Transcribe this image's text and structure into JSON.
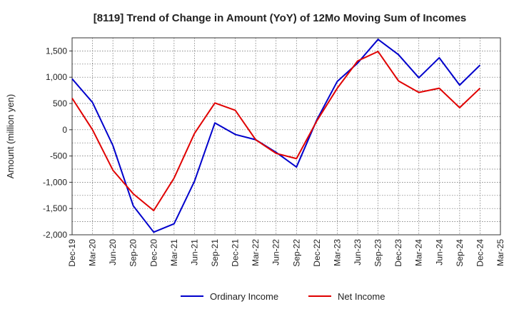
{
  "chart_data": {
    "type": "line",
    "title": "[8119]  Trend of Change in Amount (YoY) of 12Mo Moving Sum of Incomes",
    "xlabel": "",
    "ylabel": "Amount (million yen)",
    "ylim": [
      -2000,
      1750
    ],
    "yticks": [
      -2000,
      -1500,
      -1000,
      -500,
      0,
      500,
      1000,
      1500
    ],
    "ytick_labels": [
      "-2,000",
      "-1,500",
      "-1,000",
      "-500",
      "0",
      "500",
      "1,000",
      "1,500"
    ],
    "categories": [
      "Dec-19",
      "Mar-20",
      "Jun-20",
      "Sep-20",
      "Dec-20",
      "Mar-21",
      "Jun-21",
      "Sep-21",
      "Dec-21",
      "Mar-22",
      "Jun-22",
      "Sep-22",
      "Dec-22",
      "Mar-23",
      "Jun-23",
      "Sep-23",
      "Dec-23",
      "Mar-24",
      "Jun-24",
      "Sep-24",
      "Dec-24",
      "Mar-25"
    ],
    "grid": true,
    "legend_position": "bottom",
    "series": [
      {
        "name": "Ordinary Income",
        "color": "#0000cc",
        "values": [
          970,
          520,
          -300,
          -1450,
          -1950,
          -1790,
          -980,
          130,
          -90,
          -190,
          -430,
          -710,
          190,
          920,
          1270,
          1720,
          1430,
          990,
          1370,
          850,
          1230,
          null
        ]
      },
      {
        "name": "Net Income",
        "color": "#e00000",
        "values": [
          600,
          0,
          -770,
          -1220,
          -1540,
          -920,
          -70,
          510,
          370,
          -190,
          -450,
          -550,
          170,
          790,
          1310,
          1490,
          930,
          710,
          790,
          420,
          790,
          null
        ]
      }
    ]
  }
}
